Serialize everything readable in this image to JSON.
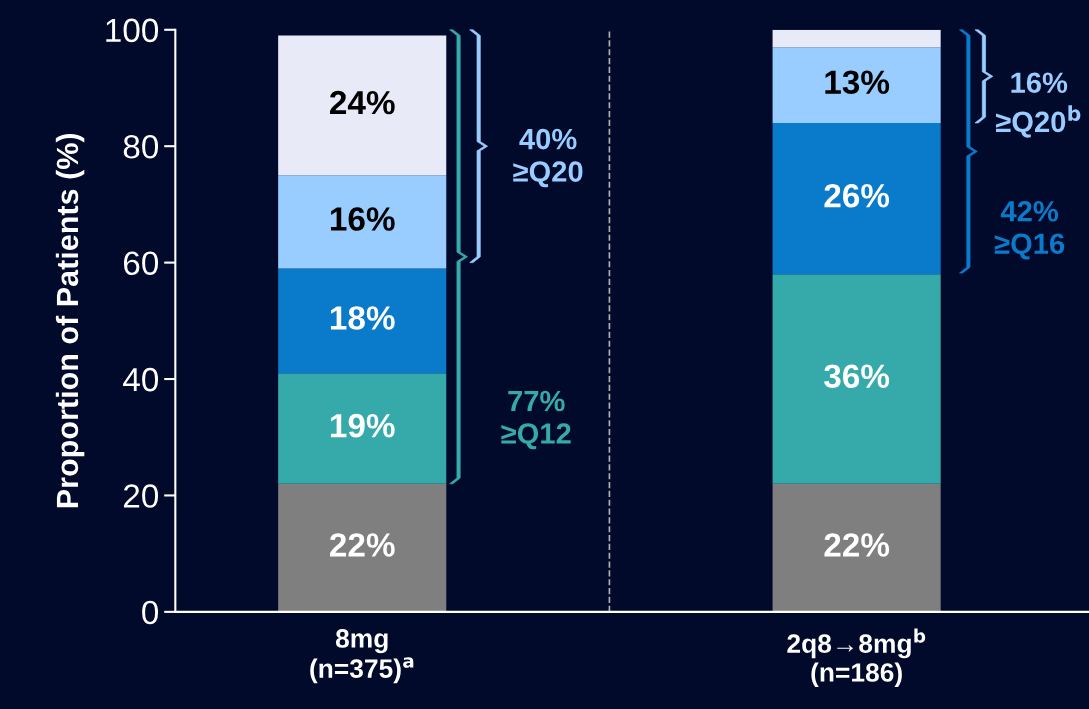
{
  "chart_data": {
    "type": "bar",
    "stacked": true,
    "ylabel": "Proportion of Patients (%)",
    "categories": [
      "8mg\n(n=375)$^{a}$",
      "2q8→8mg$^{b}$\n(n=186)"
    ],
    "series": [
      {
        "color": "#7f7f7f",
        "values": [
          22,
          22
        ],
        "value_labels": [
          "22%",
          "22%"
        ]
      },
      {
        "color": "#36a9ab",
        "values": [
          19,
          36
        ],
        "value_labels": [
          "19%",
          "36%"
        ]
      },
      {
        "color": "#0a7acb",
        "values": [
          18,
          26
        ],
        "value_labels": [
          "18%",
          "26%"
        ]
      },
      {
        "color": "#99ccff",
        "values": [
          16,
          13
        ],
        "value_labels": [
          "16%",
          "13%"
        ]
      },
      {
        "color": "#e8eaf8",
        "values": [
          24,
          3
        ],
        "value_labels": [
          "24%",
          null
        ]
      }
    ],
    "ylim": [
      0,
      100
    ],
    "yticks": [
      0,
      20,
      40,
      60,
      80,
      100
    ],
    "grid": false,
    "legend": false,
    "annotations": [
      "40%\n≥Q20",
      "77%\n≥Q12",
      "16%\n≥Q20$^{b}$",
      "42%\n≥Q16"
    ]
  }
}
